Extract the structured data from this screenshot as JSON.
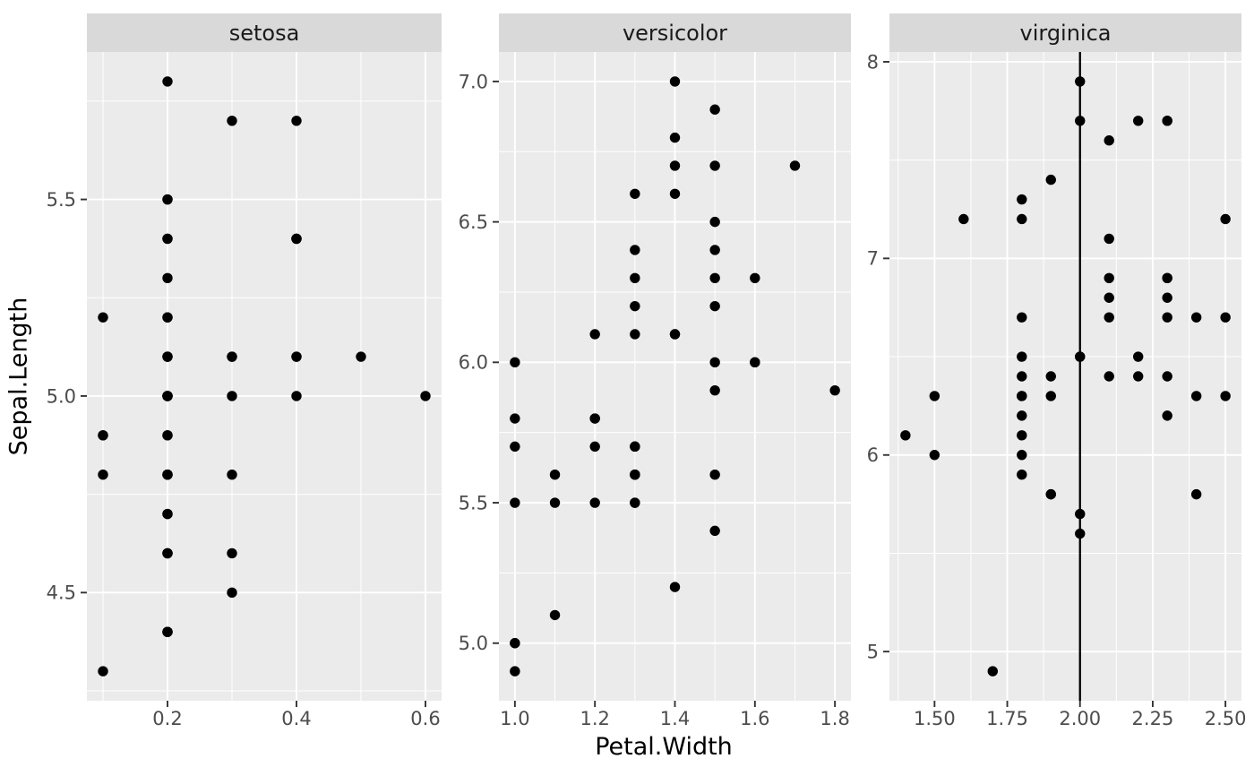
{
  "style": {
    "background": "#ffffff",
    "panel_fill": "#ebebeb",
    "strip_fill": "#d9d9d9",
    "grid_color": "#ffffff",
    "point_color": "#000000",
    "tick_mark_color": "#333333",
    "tick_label_color": "#4d4d4d",
    "strip_text_color": "#1a1a1a",
    "axis_title_color": "#000000",
    "vline_color": "#000000"
  },
  "chart_data": {
    "type": "scatter",
    "title": "",
    "xlabel": "Petal.Width",
    "ylabel": "Sepal.Length",
    "legend": "none",
    "grid": "major-and-minor",
    "facets": [
      {
        "label": "setosa",
        "xlim": [
          0.075,
          0.625
        ],
        "ylim": [
          4.225,
          5.875
        ],
        "x_major": [
          0.2,
          0.4,
          0.6
        ],
        "x_minor": [
          0.1,
          0.3,
          0.5
        ],
        "y_major": [
          4.5,
          5.0,
          5.5
        ],
        "y_minor": [
          4.25,
          4.75,
          5.25,
          5.75
        ],
        "x_tick_labels": [
          "0.2",
          "0.4",
          "0.6"
        ],
        "y_tick_labels": [
          "4.5",
          "5.0",
          "5.5"
        ],
        "vline": null,
        "points": [
          [
            0.2,
            5.1
          ],
          [
            0.2,
            4.9
          ],
          [
            0.2,
            4.7
          ],
          [
            0.2,
            4.6
          ],
          [
            0.2,
            5.0
          ],
          [
            0.4,
            5.4
          ],
          [
            0.3,
            4.6
          ],
          [
            0.2,
            5.0
          ],
          [
            0.2,
            4.4
          ],
          [
            0.1,
            4.9
          ],
          [
            0.2,
            5.4
          ],
          [
            0.2,
            4.8
          ],
          [
            0.1,
            4.8
          ],
          [
            0.1,
            4.3
          ],
          [
            0.2,
            5.8
          ],
          [
            0.4,
            5.7
          ],
          [
            0.4,
            5.4
          ],
          [
            0.3,
            5.1
          ],
          [
            0.3,
            5.7
          ],
          [
            0.3,
            5.1
          ],
          [
            0.2,
            5.4
          ],
          [
            0.4,
            5.1
          ],
          [
            0.2,
            4.6
          ],
          [
            0.5,
            5.1
          ],
          [
            0.2,
            4.8
          ],
          [
            0.2,
            5.0
          ],
          [
            0.4,
            5.0
          ],
          [
            0.2,
            5.2
          ],
          [
            0.2,
            5.2
          ],
          [
            0.2,
            4.7
          ],
          [
            0.2,
            4.8
          ],
          [
            0.4,
            5.4
          ],
          [
            0.1,
            5.2
          ],
          [
            0.2,
            5.5
          ],
          [
            0.2,
            4.9
          ],
          [
            0.2,
            5.0
          ],
          [
            0.2,
            5.5
          ],
          [
            0.1,
            4.9
          ],
          [
            0.2,
            4.4
          ],
          [
            0.2,
            5.1
          ],
          [
            0.3,
            5.0
          ],
          [
            0.3,
            4.5
          ],
          [
            0.2,
            4.4
          ],
          [
            0.6,
            5.0
          ],
          [
            0.4,
            5.1
          ],
          [
            0.3,
            4.8
          ],
          [
            0.2,
            5.1
          ],
          [
            0.2,
            4.6
          ],
          [
            0.2,
            5.3
          ],
          [
            0.2,
            5.0
          ]
        ]
      },
      {
        "label": "versicolor",
        "xlim": [
          0.96,
          1.84
        ],
        "ylim": [
          4.795,
          7.105
        ],
        "x_major": [
          1.0,
          1.2,
          1.4,
          1.6,
          1.8
        ],
        "x_minor": [
          1.1,
          1.3,
          1.5,
          1.7
        ],
        "y_major": [
          5.0,
          5.5,
          6.0,
          6.5,
          7.0
        ],
        "y_minor": [
          5.25,
          5.75,
          6.25,
          6.75
        ],
        "x_tick_labels": [
          "1.0",
          "1.2",
          "1.4",
          "1.6",
          "1.8"
        ],
        "y_tick_labels": [
          "5.0",
          "5.5",
          "6.0",
          "6.5",
          "7.0"
        ],
        "vline": null,
        "points": [
          [
            1.4,
            7.0
          ],
          [
            1.5,
            6.4
          ],
          [
            1.5,
            6.9
          ],
          [
            1.3,
            5.5
          ],
          [
            1.5,
            6.5
          ],
          [
            1.3,
            5.7
          ],
          [
            1.6,
            6.3
          ],
          [
            1.0,
            4.9
          ],
          [
            1.3,
            6.6
          ],
          [
            1.4,
            5.2
          ],
          [
            1.0,
            5.0
          ],
          [
            1.5,
            5.9
          ],
          [
            1.0,
            6.0
          ],
          [
            1.4,
            6.1
          ],
          [
            1.3,
            5.6
          ],
          [
            1.4,
            6.7
          ],
          [
            1.5,
            5.6
          ],
          [
            1.0,
            5.8
          ],
          [
            1.5,
            6.2
          ],
          [
            1.1,
            5.6
          ],
          [
            1.8,
            5.9
          ],
          [
            1.3,
            6.1
          ],
          [
            1.5,
            6.3
          ],
          [
            1.2,
            6.1
          ],
          [
            1.3,
            6.4
          ],
          [
            1.4,
            6.6
          ],
          [
            1.4,
            6.8
          ],
          [
            1.7,
            6.7
          ],
          [
            1.5,
            6.0
          ],
          [
            1.0,
            5.7
          ],
          [
            1.1,
            5.5
          ],
          [
            1.0,
            5.5
          ],
          [
            1.2,
            5.8
          ],
          [
            1.6,
            6.0
          ],
          [
            1.5,
            5.4
          ],
          [
            1.6,
            6.0
          ],
          [
            1.5,
            6.7
          ],
          [
            1.3,
            6.3
          ],
          [
            1.3,
            5.6
          ],
          [
            1.3,
            5.5
          ],
          [
            1.2,
            5.5
          ],
          [
            1.4,
            6.1
          ],
          [
            1.2,
            5.8
          ],
          [
            1.0,
            5.0
          ],
          [
            1.3,
            5.6
          ],
          [
            1.2,
            5.7
          ],
          [
            1.3,
            5.7
          ],
          [
            1.3,
            6.2
          ],
          [
            1.1,
            5.1
          ],
          [
            1.3,
            5.7
          ]
        ]
      },
      {
        "label": "virginica",
        "xlim": [
          1.345,
          2.555
        ],
        "ylim": [
          4.75,
          8.05
        ],
        "x_major": [
          1.5,
          1.75,
          2.0,
          2.25,
          2.5
        ],
        "x_minor": [
          1.375,
          1.625,
          1.875,
          2.125,
          2.375
        ],
        "y_major": [
          5,
          6,
          7,
          8
        ],
        "y_minor": [
          5.5,
          6.5,
          7.5
        ],
        "x_tick_labels": [
          "1.50",
          "1.75",
          "2.00",
          "2.25",
          "2.50"
        ],
        "y_tick_labels": [
          "5",
          "6",
          "7",
          "8"
        ],
        "vline": 2.0,
        "points": [
          [
            2.5,
            6.3
          ],
          [
            1.9,
            5.8
          ],
          [
            2.1,
            7.1
          ],
          [
            1.8,
            6.3
          ],
          [
            2.2,
            6.5
          ],
          [
            2.1,
            7.6
          ],
          [
            1.7,
            4.9
          ],
          [
            1.8,
            7.3
          ],
          [
            1.8,
            6.7
          ],
          [
            2.5,
            7.2
          ],
          [
            2.0,
            6.5
          ],
          [
            1.9,
            6.4
          ],
          [
            2.1,
            6.8
          ],
          [
            2.0,
            5.7
          ],
          [
            2.4,
            5.8
          ],
          [
            2.3,
            6.4
          ],
          [
            1.8,
            6.5
          ],
          [
            2.2,
            7.7
          ],
          [
            2.3,
            7.7
          ],
          [
            1.5,
            6.0
          ],
          [
            2.3,
            6.9
          ],
          [
            2.0,
            5.6
          ],
          [
            2.0,
            7.7
          ],
          [
            1.8,
            6.3
          ],
          [
            2.1,
            6.7
          ],
          [
            1.8,
            7.2
          ],
          [
            1.8,
            6.2
          ],
          [
            1.8,
            6.1
          ],
          [
            2.1,
            6.4
          ],
          [
            1.6,
            7.2
          ],
          [
            1.9,
            7.4
          ],
          [
            2.0,
            7.9
          ],
          [
            2.2,
            6.4
          ],
          [
            1.5,
            6.3
          ],
          [
            1.4,
            6.1
          ],
          [
            2.3,
            7.7
          ],
          [
            2.4,
            6.3
          ],
          [
            1.8,
            6.4
          ],
          [
            1.8,
            6.0
          ],
          [
            2.1,
            6.9
          ],
          [
            2.4,
            6.7
          ],
          [
            2.3,
            6.9
          ],
          [
            1.9,
            5.8
          ],
          [
            2.3,
            6.8
          ],
          [
            2.5,
            6.7
          ],
          [
            2.3,
            6.7
          ],
          [
            1.9,
            6.3
          ],
          [
            2.0,
            6.5
          ],
          [
            2.3,
            6.2
          ],
          [
            1.8,
            5.9
          ]
        ]
      }
    ]
  }
}
